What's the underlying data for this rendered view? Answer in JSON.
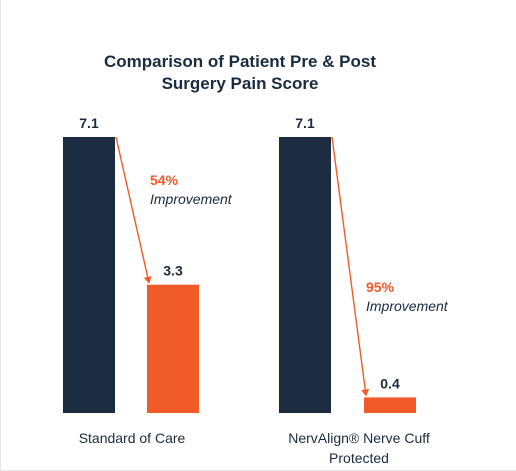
{
  "chart_data": {
    "type": "bar",
    "title": "Comparison of Patient Pre & Post Surgery Pain Score",
    "title_lines": [
      "Comparison of Patient Pre & Post",
      "Surgery Pain Score"
    ],
    "xlabel": "",
    "ylabel": "",
    "ylim": [
      0,
      7.1
    ],
    "grid": false,
    "groups": [
      {
        "category_lines": [
          "Standard of Care"
        ],
        "pre": 7.1,
        "post": 3.3,
        "pre_label": "7.1",
        "post_label": "3.3",
        "improvement_pct": "54%",
        "improvement_text": "Improvement"
      },
      {
        "category_lines": [
          "NervAlign® Nerve Cuff",
          "Protected"
        ],
        "pre": 7.1,
        "post": 0.4,
        "pre_label": "7.1",
        "post_label": "0.4",
        "improvement_pct": "95%",
        "improvement_text": "Improvement"
      }
    ]
  },
  "colors": {
    "pre_bar": "#1b2b40",
    "post_bar": "#f15a29",
    "title": "#1b2b40",
    "value_label": "#1b2b40",
    "improvement": "#f15a29",
    "category": "#1b2b40",
    "arrow": "#f15a29"
  }
}
